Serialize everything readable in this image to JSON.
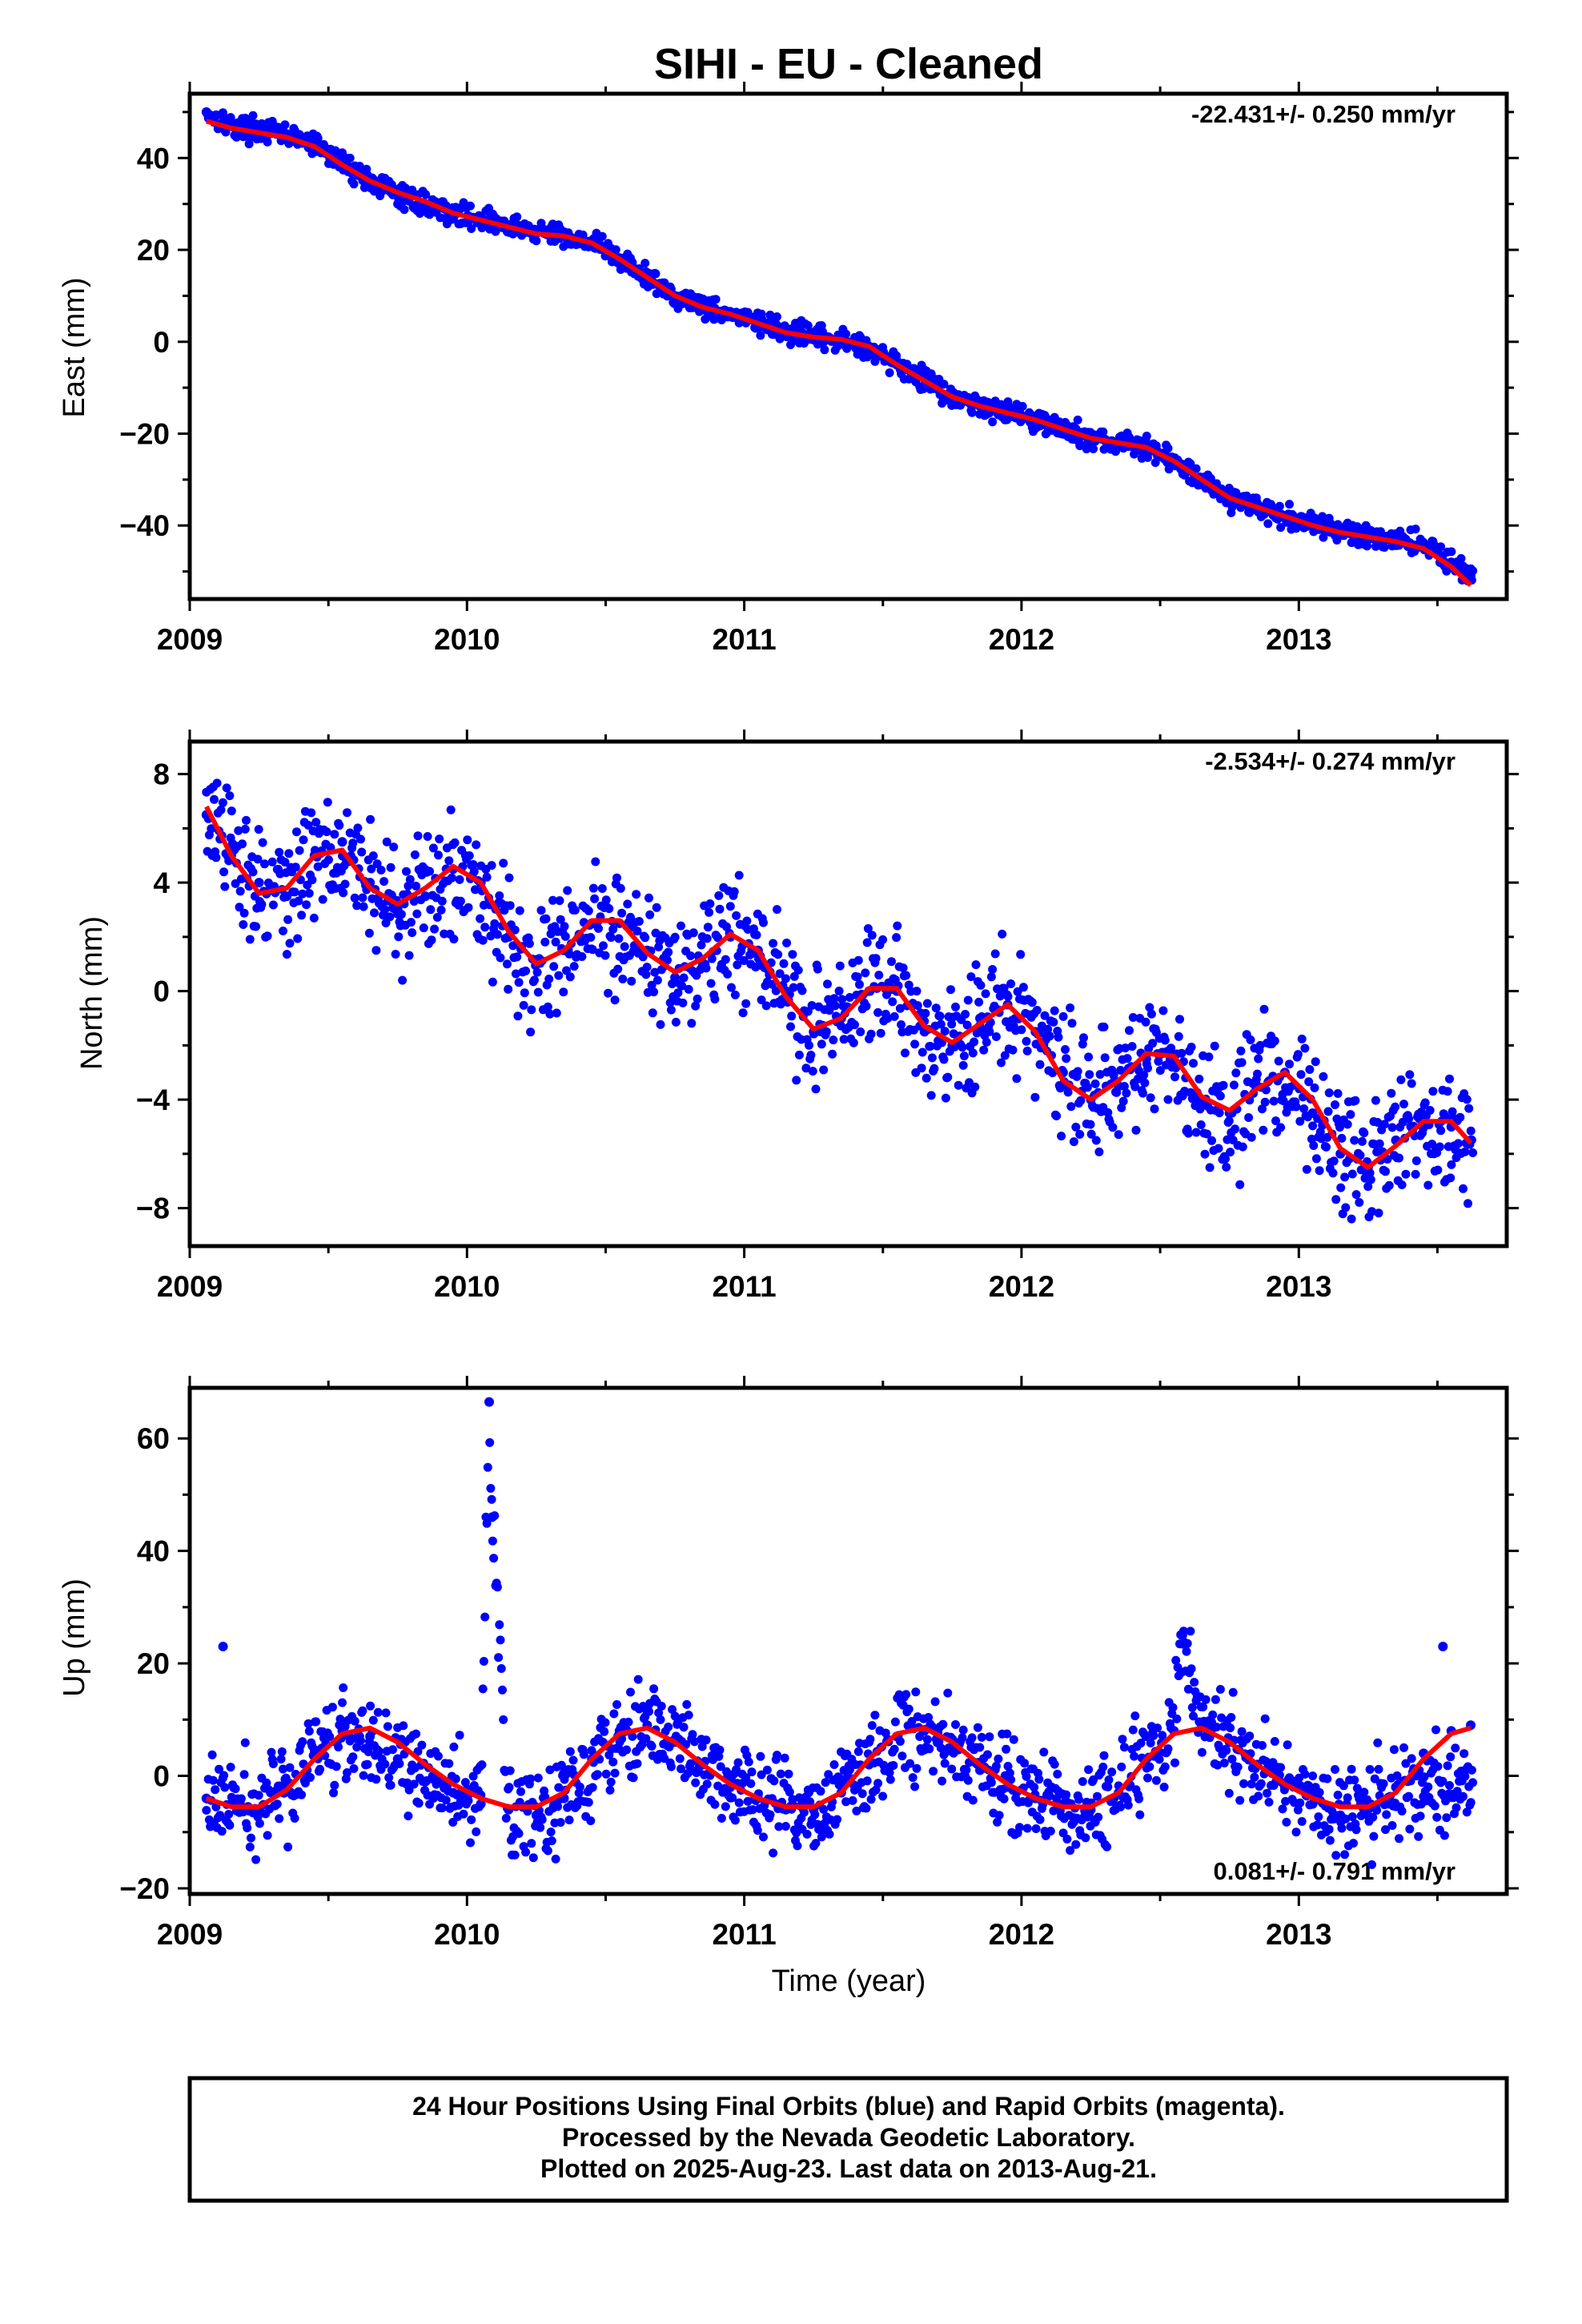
{
  "title": "SIHI  - EU - Cleaned",
  "x_axis_label": "Time (year)",
  "footer": {
    "line1": "24 Hour Positions Using Final Orbits (blue) and Rapid Orbits (magenta).",
    "line2": "Processed by the Nevada Geodetic Laboratory.",
    "line3": "Plotted on 2025-Aug-23. Last data on 2013-Aug-21."
  },
  "colors": {
    "observations": "#0000ff",
    "model_fit": "#ff0000",
    "frame": "#000000"
  },
  "chart_data": [
    {
      "type": "scatter",
      "component": "East",
      "ylabel": "East (mm)",
      "xlabel": "",
      "rate_label": "-22.431+/- 0.250 mm/yr",
      "xlim": [
        2009.0,
        2013.75
      ],
      "ylim": [
        -56,
        54
      ],
      "x_ticks": [
        "2009",
        "2010",
        "2011",
        "2012",
        "2013"
      ],
      "y_ticks": [
        "40",
        "20",
        "0",
        "−20",
        "−40"
      ],
      "series": [
        {
          "marker": "dots",
          "x": [
            2009.06,
            2009.15,
            2009.25,
            2009.35,
            2009.45,
            2009.55,
            2009.65,
            2009.75,
            2009.85,
            2009.95,
            2010.05,
            2010.15,
            2010.25,
            2010.35,
            2010.45,
            2010.55,
            2010.65,
            2010.75,
            2010.85,
            2010.95,
            2011.05,
            2011.15,
            2011.25,
            2011.35,
            2011.45,
            2011.55,
            2011.65,
            2011.75,
            2011.85,
            2011.95,
            2012.05,
            2012.15,
            2012.25,
            2012.35,
            2012.45,
            2012.55,
            2012.65,
            2012.75,
            2012.85,
            2012.95,
            2013.05,
            2013.15,
            2013.25,
            2013.35,
            2013.45,
            2013.55,
            2013.62
          ],
          "y": [
            50,
            47,
            46,
            45,
            43,
            39,
            35,
            32,
            30,
            28,
            27,
            25,
            24,
            23,
            22,
            18,
            14,
            10,
            8,
            6,
            4,
            2,
            1,
            0,
            -1,
            -5,
            -8,
            -12,
            -14,
            -15,
            -17,
            -19,
            -21,
            -22,
            -23,
            -26,
            -30,
            -34,
            -36,
            -38,
            -40,
            -41,
            -42,
            -43,
            -44,
            -48,
            -51
          ]
        },
        {
          "name": "model",
          "x": [
            2009.06,
            2009.15,
            2009.25,
            2009.35,
            2009.45,
            2009.55,
            2009.65,
            2009.75,
            2009.85,
            2009.95,
            2010.05,
            2010.15,
            2010.25,
            2010.35,
            2010.45,
            2010.55,
            2010.65,
            2010.75,
            2010.85,
            2010.95,
            2011.05,
            2011.15,
            2011.25,
            2011.35,
            2011.45,
            2011.55,
            2011.65,
            2011.75,
            2011.85,
            2011.95,
            2012.05,
            2012.15,
            2012.25,
            2012.35,
            2012.45,
            2012.55,
            2012.65,
            2012.75,
            2012.85,
            2012.95,
            2013.05,
            2013.15,
            2013.25,
            2013.35,
            2013.45,
            2013.55,
            2013.62
          ],
          "y": [
            48,
            46.5,
            45.5,
            44.5,
            42.5,
            38.5,
            35,
            32.5,
            30.5,
            28,
            26.5,
            25,
            23.5,
            23,
            21.5,
            18,
            14,
            10,
            7.5,
            6,
            4,
            2,
            1,
            0.5,
            -1,
            -5,
            -8.5,
            -12,
            -14,
            -15.5,
            -17,
            -19,
            -21,
            -22,
            -23,
            -26,
            -30,
            -34,
            -36,
            -38,
            -40,
            -41.5,
            -42.5,
            -43.5,
            -45,
            -49,
            -53
          ]
        }
      ]
    },
    {
      "type": "scatter",
      "component": "North",
      "ylabel": "North (mm)",
      "xlabel": "",
      "rate_label": "-2.534+/- 0.274 mm/yr",
      "xlim": [
        2009.0,
        2013.75
      ],
      "ylim": [
        -9.4,
        9.2
      ],
      "x_ticks": [
        "2009",
        "2010",
        "2011",
        "2012",
        "2013"
      ],
      "y_ticks": [
        "8",
        "4",
        "0",
        "−4",
        "−8"
      ],
      "series": [
        {
          "marker": "dots",
          "x": [
            2009.06,
            2009.15,
            2009.25,
            2009.35,
            2009.45,
            2009.55,
            2009.65,
            2009.75,
            2009.85,
            2009.95,
            2010.05,
            2010.15,
            2010.25,
            2010.35,
            2010.45,
            2010.55,
            2010.65,
            2010.75,
            2010.85,
            2010.95,
            2011.05,
            2011.15,
            2011.25,
            2011.35,
            2011.45,
            2011.55,
            2011.65,
            2011.75,
            2011.85,
            2011.95,
            2012.05,
            2012.15,
            2012.25,
            2012.35,
            2012.45,
            2012.55,
            2012.65,
            2012.75,
            2012.85,
            2012.95,
            2013.05,
            2013.15,
            2013.25,
            2013.35,
            2013.45,
            2013.55,
            2013.62
          ],
          "y": [
            6.5,
            5,
            4,
            3.5,
            5,
            5.5,
            4,
            3,
            3.5,
            4.5,
            4,
            2,
            1,
            1.5,
            2.5,
            2.5,
            1.5,
            0.5,
            1,
            2,
            1.5,
            0,
            -1.5,
            -1,
            0,
            0,
            -1.5,
            -2,
            -1,
            -0.5,
            -1.5,
            -3,
            -4,
            -3.5,
            -2.5,
            -2.5,
            -4,
            -4.5,
            -3.5,
            -3,
            -4.5,
            -6,
            -6.5,
            -5.5,
            -5,
            -5,
            -5.5
          ]
        },
        {
          "name": "model",
          "x": [
            2009.06,
            2009.15,
            2009.25,
            2009.35,
            2009.45,
            2009.55,
            2009.65,
            2009.75,
            2009.85,
            2009.95,
            2010.05,
            2010.15,
            2010.25,
            2010.35,
            2010.45,
            2010.55,
            2010.65,
            2010.75,
            2010.85,
            2010.95,
            2011.05,
            2011.15,
            2011.25,
            2011.35,
            2011.45,
            2011.55,
            2011.65,
            2011.75,
            2011.85,
            2011.95,
            2012.05,
            2012.15,
            2012.25,
            2012.35,
            2012.45,
            2012.55,
            2012.65,
            2012.75,
            2012.85,
            2012.95,
            2013.05,
            2013.15,
            2013.25,
            2013.35,
            2013.45,
            2013.55,
            2013.62
          ],
          "y": [
            6.8,
            5,
            3.6,
            3.8,
            5,
            5.2,
            3.8,
            3.2,
            3.8,
            4.6,
            4,
            2.2,
            1,
            1.5,
            2.6,
            2.6,
            1.4,
            0.7,
            1.2,
            2.1,
            1.5,
            -0.2,
            -1.4,
            -1,
            0.1,
            0.1,
            -1.3,
            -1.9,
            -1.2,
            -0.5,
            -1.5,
            -3.3,
            -4,
            -3.3,
            -2.3,
            -2.4,
            -3.9,
            -4.4,
            -3.6,
            -3,
            -4,
            -5.8,
            -6.5,
            -5.7,
            -4.8,
            -4.8,
            -5.6
          ]
        }
      ]
    },
    {
      "type": "scatter",
      "component": "Up",
      "ylabel": "Up (mm)",
      "xlabel": "Time (year)",
      "rate_label": "0.081+/- 0.791 mm/yr",
      "xlim": [
        2009.0,
        2013.75
      ],
      "ylim": [
        -21,
        69
      ],
      "x_ticks": [
        "2009",
        "2010",
        "2011",
        "2012",
        "2013"
      ],
      "y_ticks": [
        "60",
        "40",
        "20",
        "0",
        "−20"
      ],
      "series": [
        {
          "marker": "dots",
          "x": [
            2009.06,
            2009.15,
            2009.25,
            2009.35,
            2009.45,
            2009.55,
            2009.65,
            2009.75,
            2009.85,
            2009.95,
            2010.05,
            2010.08,
            2010.09,
            2010.15,
            2010.25,
            2010.35,
            2010.45,
            2010.55,
            2010.65,
            2010.75,
            2010.85,
            2010.95,
            2011.05,
            2011.15,
            2011.25,
            2011.35,
            2011.45,
            2011.55,
            2011.65,
            2011.75,
            2011.85,
            2011.95,
            2012.05,
            2012.15,
            2012.25,
            2012.35,
            2012.45,
            2012.55,
            2012.58,
            2012.65,
            2012.75,
            2012.85,
            2012.95,
            2013.05,
            2013.15,
            2013.25,
            2013.35,
            2013.45,
            2013.52,
            2013.55,
            2013.62,
            2009.12
          ],
          "y": [
            -4,
            -5,
            -6,
            -2,
            4,
            8,
            7,
            3,
            -1,
            -3,
            -5,
            66.5,
            46,
            -6,
            -7,
            -4,
            3,
            8,
            9,
            6,
            2,
            -2,
            -4,
            -6,
            -6,
            -3,
            2,
            7,
            8,
            5,
            1,
            -2,
            -4,
            -5,
            -6,
            -3,
            3,
            8,
            25,
            9,
            6,
            2,
            -2,
            -5,
            -7,
            -6,
            -2,
            4,
            23,
            8,
            9,
            23
          ]
        },
        {
          "name": "model",
          "x": [
            2009.06,
            2009.15,
            2009.25,
            2009.35,
            2009.45,
            2009.55,
            2009.65,
            2009.75,
            2009.85,
            2009.95,
            2010.05,
            2010.15,
            2010.25,
            2010.35,
            2010.45,
            2010.55,
            2010.65,
            2010.75,
            2010.85,
            2010.95,
            2011.05,
            2011.15,
            2011.25,
            2011.35,
            2011.45,
            2011.55,
            2011.65,
            2011.75,
            2011.85,
            2011.95,
            2012.05,
            2012.15,
            2012.25,
            2012.35,
            2012.45,
            2012.55,
            2012.65,
            2012.75,
            2012.85,
            2012.95,
            2013.05,
            2013.15,
            2013.25,
            2013.35,
            2013.45,
            2013.55,
            2013.62
          ],
          "y": [
            -4,
            -5.5,
            -5.5,
            -2.5,
            3,
            7.5,
            8.5,
            6,
            2,
            -1.5,
            -4,
            -5.5,
            -5.5,
            -3,
            3,
            7.5,
            8.5,
            6,
            2,
            -1.5,
            -4,
            -5.5,
            -5.5,
            -3,
            3,
            7.5,
            8.5,
            6,
            2,
            -1.5,
            -4,
            -5.5,
            -5.5,
            -3,
            3,
            7.5,
            8.5,
            6,
            2,
            -1.5,
            -4,
            -5.5,
            -5.5,
            -3,
            3,
            7.5,
            8.5
          ]
        }
      ]
    }
  ]
}
